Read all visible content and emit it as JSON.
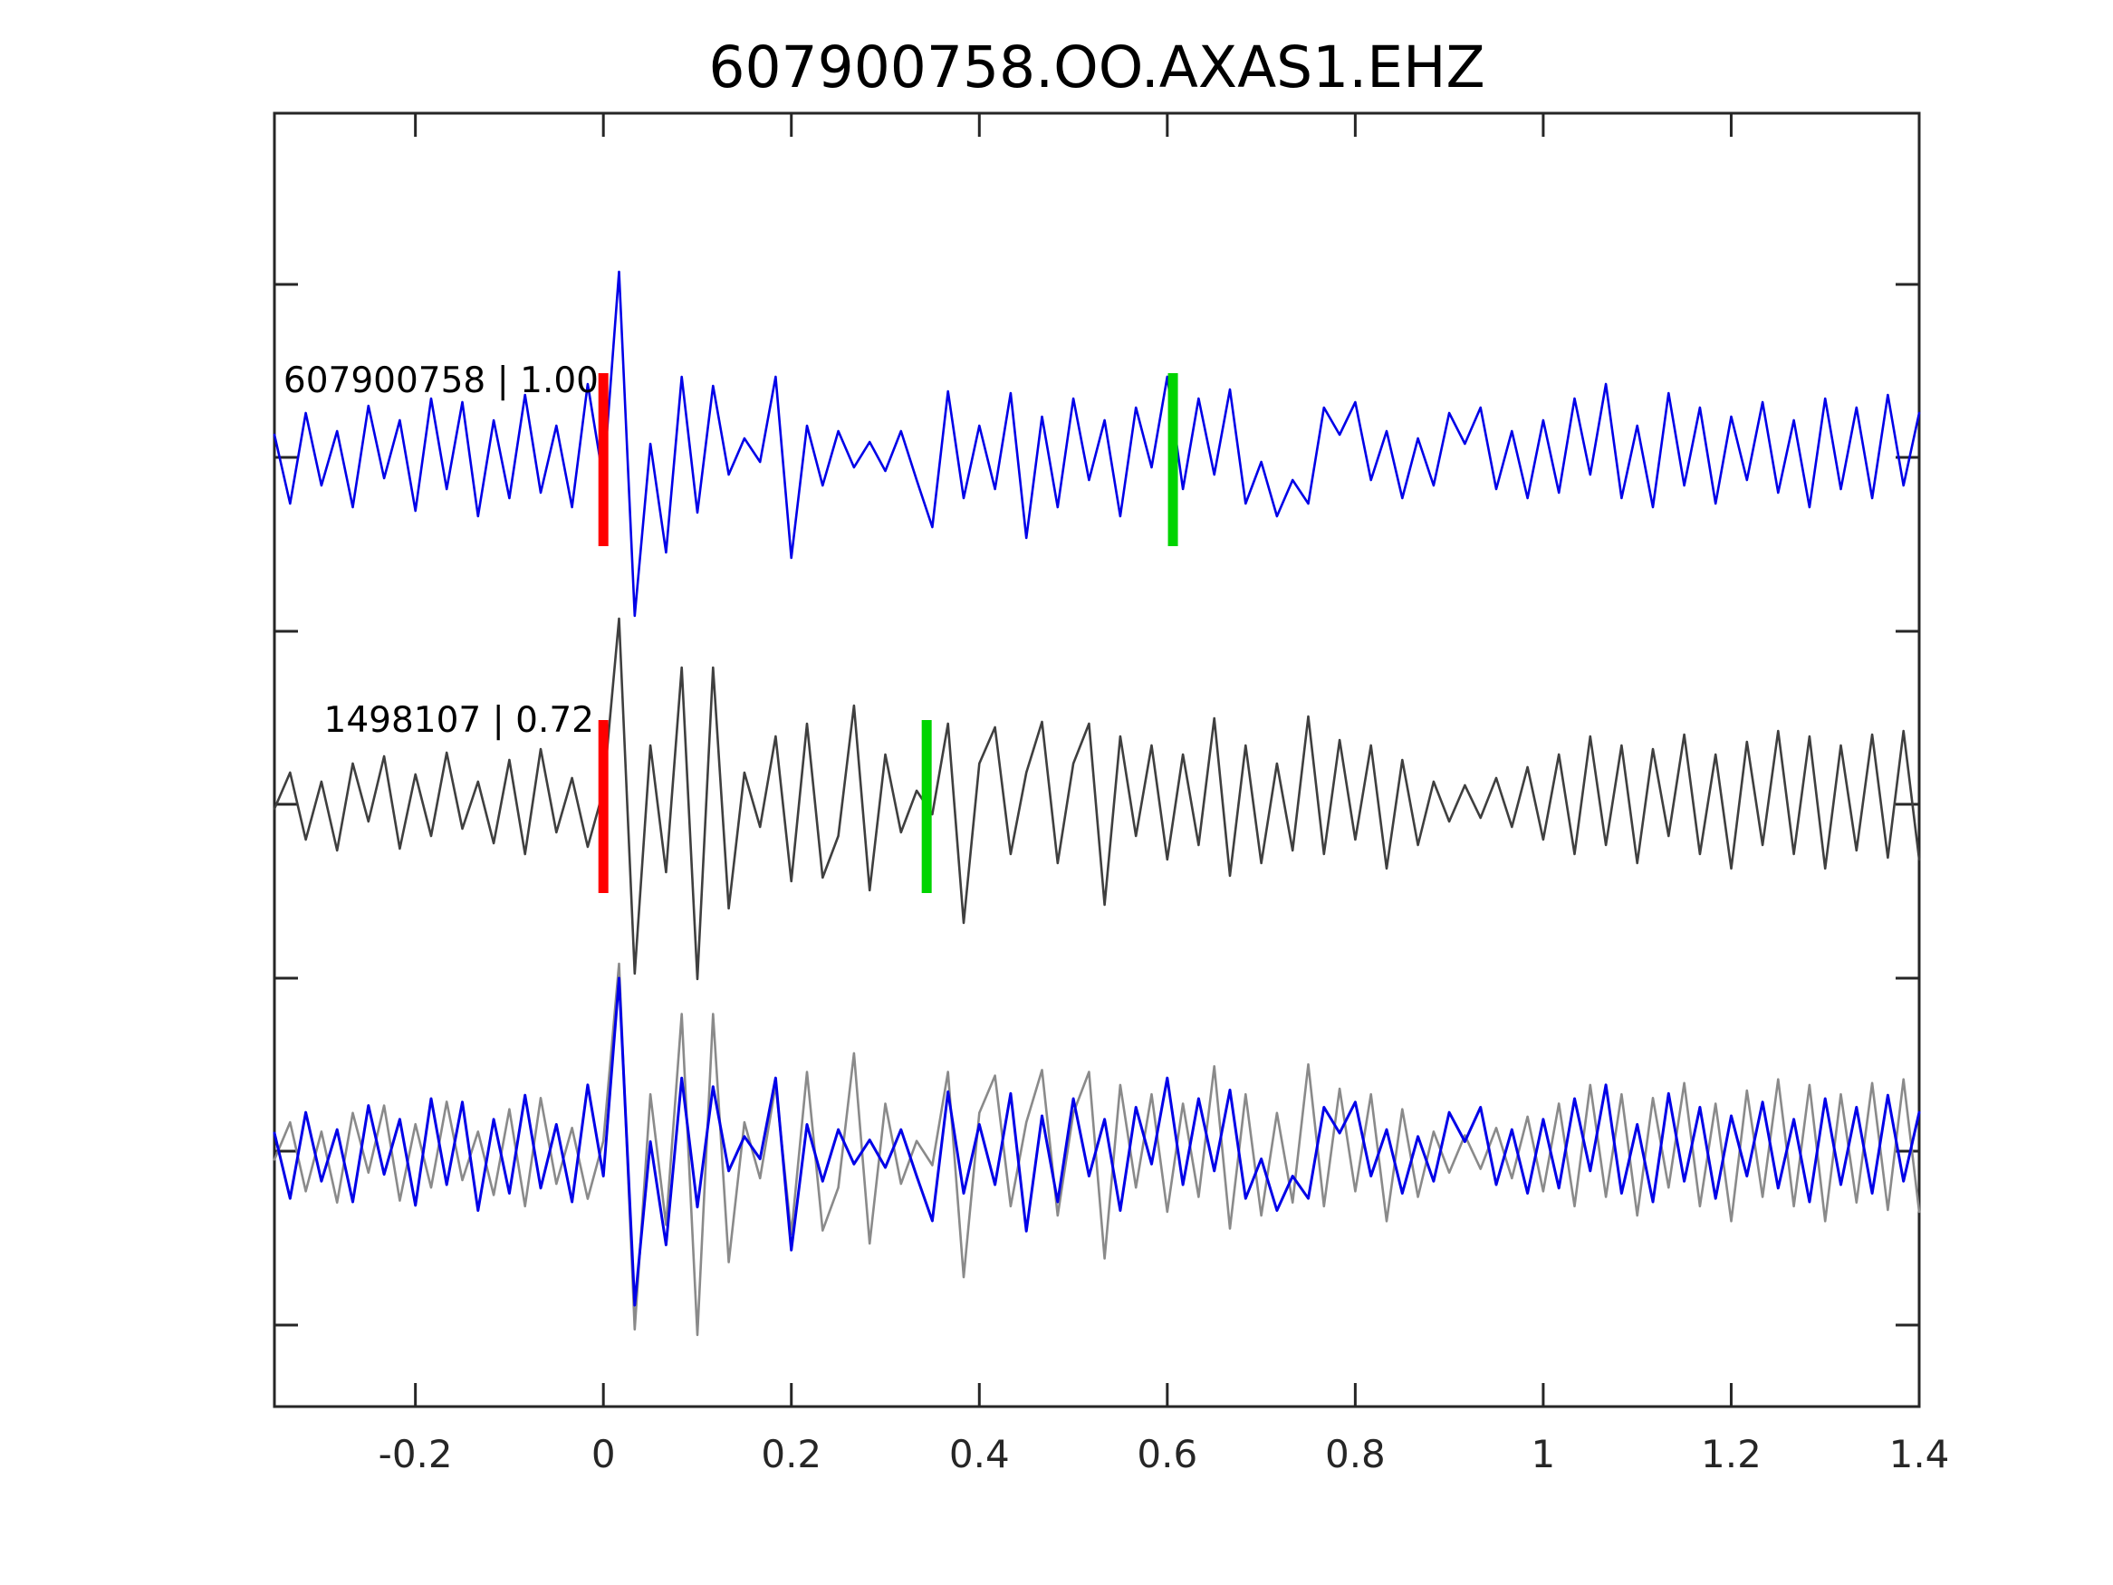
{
  "chart_data": {
    "type": "line",
    "title": "607900758.OO.AXAS1.EHZ",
    "xlabel": "",
    "ylabel": "",
    "xlim": [
      -0.35,
      1.4
    ],
    "x_ticks": [
      -0.2,
      0,
      0.2,
      0.4,
      0.6,
      0.8,
      1,
      1.2,
      1.4
    ],
    "x_tick_labels": [
      "-0.2",
      "0",
      "0.2",
      "0.4",
      "0.6",
      "0.8",
      "1",
      "1.2",
      "1.4"
    ],
    "grid": false,
    "legend": "none",
    "t_start": -0.35,
    "sample_interval_s": 0.0166667,
    "colors": {
      "template_blue": "#0000e8",
      "detection_gray": "#3f3f3f",
      "overlay_gray": "#8a8a8a",
      "pick_red": "#ff0000",
      "assoc_green": "#00d400"
    },
    "traces": [
      {
        "id": "template",
        "label": "607900758 | 1.00",
        "color": "#0000e8",
        "row": "top",
        "picks": [
          {
            "name": "pick-marker-red",
            "color": "#ff0000",
            "t": 0.0
          },
          {
            "name": "assoc-marker-green",
            "color": "#00d400",
            "t": 0.606
          }
        ],
        "values": [
          0.1,
          -0.28,
          0.22,
          -0.18,
          0.12,
          -0.3,
          0.26,
          -0.14,
          0.18,
          -0.32,
          0.3,
          -0.2,
          0.28,
          -0.35,
          0.18,
          -0.25,
          0.32,
          -0.22,
          0.15,
          -0.3,
          0.38,
          -0.15,
          1.0,
          -0.9,
          0.05,
          -0.55,
          0.42,
          -0.33,
          0.37,
          -0.12,
          0.08,
          -0.05,
          0.42,
          -0.58,
          0.15,
          -0.18,
          0.12,
          -0.08,
          0.06,
          -0.1,
          0.12,
          -0.15,
          -0.41,
          0.34,
          -0.25,
          0.15,
          -0.2,
          0.33,
          -0.47,
          0.2,
          -0.3,
          0.3,
          -0.15,
          0.18,
          -0.35,
          0.25,
          -0.08,
          0.42,
          -0.2,
          0.3,
          -0.12,
          0.35,
          -0.28,
          -0.05,
          -0.35,
          -0.15,
          -0.28,
          0.25,
          0.1,
          0.28,
          -0.15,
          0.12,
          -0.25,
          0.08,
          -0.18,
          0.22,
          0.05,
          0.25,
          -0.2,
          0.12,
          -0.25,
          0.18,
          -0.22,
          0.3,
          -0.12,
          0.38,
          -0.25,
          0.15,
          -0.3,
          0.33,
          -0.18,
          0.25,
          -0.28,
          0.2,
          -0.15,
          0.28,
          -0.22,
          0.18,
          -0.3,
          0.3,
          -0.2,
          0.25,
          -0.25,
          0.32,
          -0.18,
          0.22
        ]
      },
      {
        "id": "detection",
        "label": "1498107 | 0.72",
        "color": "#3f3f3f",
        "row": "middle",
        "picks": [
          {
            "name": "pick-marker-red",
            "color": "#ff0000",
            "t": 0.0
          },
          {
            "name": "assoc-marker-green",
            "color": "#00d400",
            "t": 0.344
          }
        ],
        "values": [
          -0.05,
          0.15,
          -0.22,
          0.1,
          -0.28,
          0.2,
          -0.12,
          0.24,
          -0.27,
          0.14,
          -0.2,
          0.26,
          -0.16,
          0.1,
          -0.24,
          0.22,
          -0.3,
          0.28,
          -0.18,
          0.12,
          -0.26,
          0.05,
          1.0,
          -0.96,
          0.3,
          -0.4,
          0.73,
          -0.99,
          0.73,
          -0.6,
          0.15,
          -0.15,
          0.35,
          -0.45,
          0.42,
          -0.43,
          -0.2,
          0.52,
          -0.5,
          0.25,
          -0.18,
          0.05,
          -0.08,
          0.42,
          -0.68,
          0.2,
          0.4,
          -0.3,
          0.15,
          0.43,
          -0.35,
          0.2,
          0.42,
          -0.58,
          0.35,
          -0.2,
          0.3,
          -0.33,
          0.25,
          -0.25,
          0.45,
          -0.42,
          0.3,
          -0.35,
          0.2,
          -0.28,
          0.46,
          -0.3,
          0.33,
          -0.22,
          0.3,
          -0.38,
          0.22,
          -0.25,
          0.1,
          -0.12,
          0.08,
          -0.1,
          0.12,
          -0.15,
          0.18,
          -0.22,
          0.25,
          -0.3,
          0.35,
          -0.25,
          0.3,
          -0.35,
          0.28,
          -0.2,
          0.36,
          -0.3,
          0.25,
          -0.38,
          0.32,
          -0.25,
          0.38,
          -0.3,
          0.35,
          -0.38,
          0.3,
          -0.28,
          0.36,
          -0.32,
          0.38,
          -0.33
        ]
      },
      {
        "id": "overlay-detection",
        "label": "",
        "color": "#8a8a8a",
        "row": "bottom",
        "source": "detection",
        "scale": 1.03,
        "picks": []
      },
      {
        "id": "overlay-template",
        "label": "",
        "color": "#0000e8",
        "row": "bottom",
        "source": "template",
        "scale": 0.95,
        "picks": []
      }
    ]
  }
}
